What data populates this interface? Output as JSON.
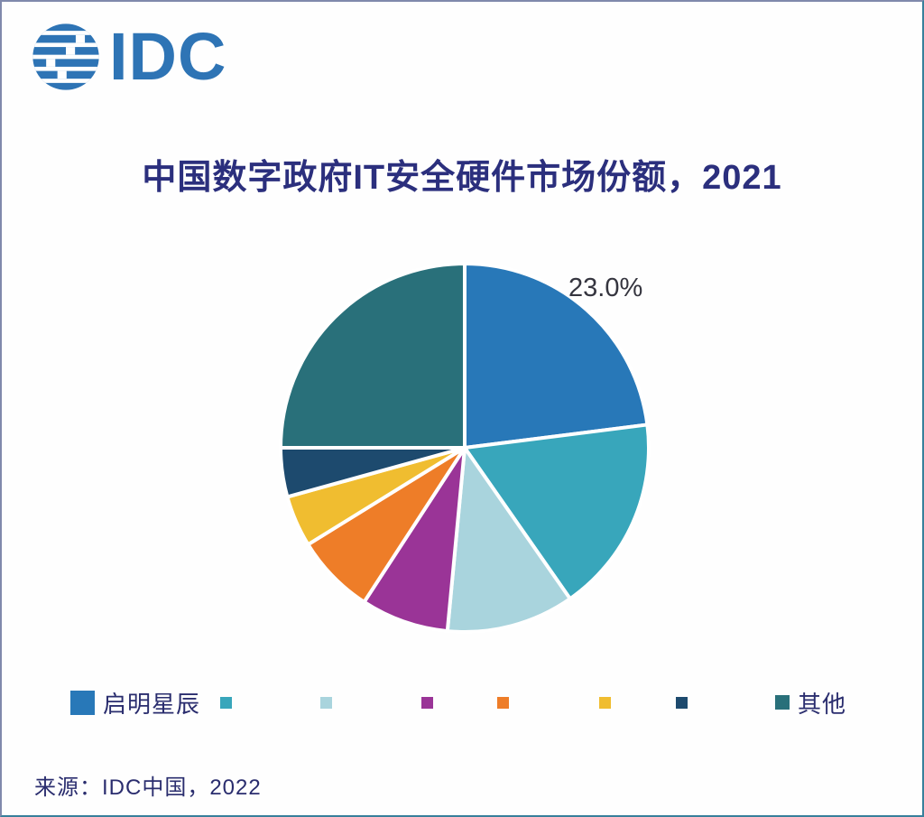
{
  "brand": {
    "logo_text": "IDC",
    "logo_color": "#2e74b5"
  },
  "source": {
    "text": "来源：IDC中国，2022"
  },
  "chart_data": {
    "type": "pie",
    "title": "中国数字政府IT安全硬件市场份额，2021",
    "start_angle_deg": 0,
    "direction": "clockwise",
    "legend_position": "bottom",
    "gap_color": "#ffffff",
    "slices": [
      {
        "label": "启明星辰",
        "value": 23.0,
        "color": "#2878b8",
        "data_label": "23.0%"
      },
      {
        "label": "",
        "value": 17.3,
        "color": "#38a6bb",
        "data_label": ""
      },
      {
        "label": "",
        "value": 11.2,
        "color": "#a9d4dd",
        "data_label": ""
      },
      {
        "label": "",
        "value": 7.7,
        "color": "#9a3497",
        "data_label": ""
      },
      {
        "label": "",
        "value": 7.0,
        "color": "#ee7d28",
        "data_label": ""
      },
      {
        "label": "",
        "value": 4.5,
        "color": "#f0bd30",
        "data_label": ""
      },
      {
        "label": "",
        "value": 4.3,
        "color": "#1d4a6e",
        "data_label": ""
      },
      {
        "label": "其他",
        "value": 25.0,
        "color": "#29707a",
        "data_label": ""
      }
    ],
    "annotations": [
      {
        "text": "23.0%",
        "slice_index": 0,
        "position": "outside-upper-right"
      }
    ]
  }
}
